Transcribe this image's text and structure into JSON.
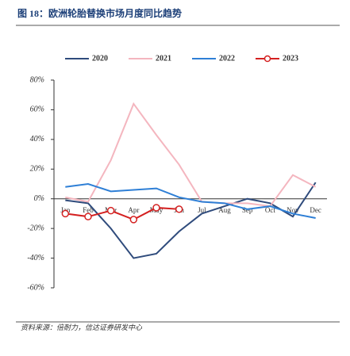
{
  "chart_data": {
    "type": "line",
    "title": "图 18：欧洲轮胎替换市场月度同比趋势",
    "source": "资料来源：倍耐力，信达证券研发中心",
    "categories": [
      "Jan",
      "Feb",
      "Mar",
      "Apr",
      "May",
      "Jun",
      "Jul",
      "Aug",
      "Sep",
      "Oct",
      "Nov",
      "Dec"
    ],
    "series": [
      {
        "name": "2020",
        "color": "#2f4b7c",
        "values": [
          -1,
          -3,
          -20,
          -40,
          -37,
          -22,
          -10,
          -5,
          0,
          -3,
          -12,
          11
        ]
      },
      {
        "name": "2021",
        "color": "#f4b6bf",
        "values": [
          1,
          -2,
          26,
          64,
          43,
          23,
          -2,
          -3,
          -3,
          -5,
          16,
          8
        ]
      },
      {
        "name": "2022",
        "color": "#2e7fd6",
        "values": [
          8,
          10,
          5,
          6,
          7,
          1,
          -2,
          -3,
          -7,
          -5,
          -10,
          -13
        ]
      },
      {
        "name": "2023",
        "color": "#d42020",
        "marker": true,
        "values": [
          -10,
          -12,
          -8,
          -14,
          -6,
          -7,
          null,
          null,
          null,
          null,
          null,
          null
        ]
      }
    ],
    "ylim": [
      -60,
      80
    ],
    "yticks": [
      {
        "value": -60,
        "label": "-60%"
      },
      {
        "value": -40,
        "label": "-40%"
      },
      {
        "value": -20,
        "label": "-20%"
      },
      {
        "value": 0,
        "label": "0%"
      },
      {
        "value": 20,
        "label": "20%"
      },
      {
        "value": 40,
        "label": "40%"
      },
      {
        "value": 60,
        "label": "60%"
      },
      {
        "value": 80,
        "label": "80%"
      }
    ],
    "legend": "top",
    "grid": false
  }
}
